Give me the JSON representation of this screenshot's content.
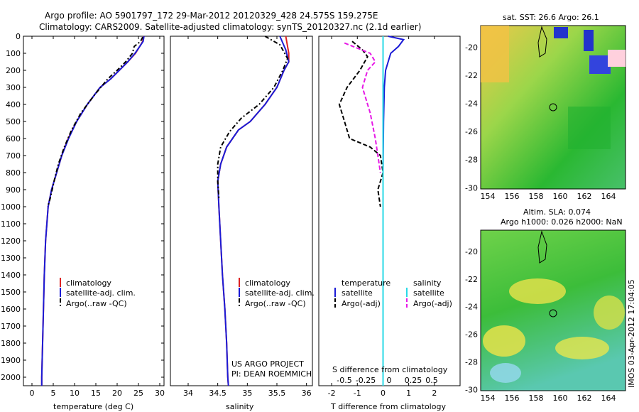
{
  "header": {
    "line1": "Argo profile: AO 5901797_172 29-Mar-2012 20120329_428 24.575S 159.275E",
    "line2": "Climatology: CARS2009. Satellite-adjusted climatology: synTS_20120327.nc (2.1d earlier)"
  },
  "colors": {
    "climatology": "#dd2222",
    "satellite": "#1b1bd6",
    "argo": "#000000",
    "salinity_sat": "#29d9e6",
    "argo_adj_sal": "#e619e6"
  },
  "chart_data": [
    {
      "type": "line",
      "xlabel": "temperature (deg C)",
      "xlim": [
        -2,
        31
      ],
      "ylim": [
        0,
        2050
      ],
      "y_inverted": true,
      "xticks": [
        0,
        5,
        10,
        15,
        20,
        25,
        30
      ],
      "yticks": [
        0,
        100,
        200,
        300,
        400,
        500,
        600,
        700,
        800,
        900,
        1000,
        1100,
        1200,
        1300,
        1400,
        1500,
        1600,
        1700,
        1800,
        1900,
        2000
      ],
      "legend": [
        "climatology",
        "satellite-adj. clim.",
        "Argo(..raw -QC)"
      ],
      "series": [
        {
          "name": "climatology",
          "x": [
            26.2,
            26.0,
            25.3,
            24.3,
            22.5,
            20.5,
            18.5,
            16.0,
            13.0,
            10.5,
            8.5,
            7.0,
            5.8,
            4.6,
            3.8,
            3.2,
            2.9,
            2.7,
            2.5,
            2.4,
            2.3,
            2.3
          ],
          "y": [
            0,
            30,
            60,
            100,
            150,
            200,
            250,
            300,
            400,
            500,
            600,
            700,
            800,
            900,
            1000,
            1200,
            1400,
            1600,
            1800,
            1900,
            2000,
            2050
          ]
        },
        {
          "name": "satellite-adj. clim.",
          "x": [
            26.3,
            26.1,
            25.3,
            24.2,
            22.5,
            20.5,
            18.5,
            16.0,
            13.0,
            10.5,
            8.6,
            7.0,
            5.8,
            4.6,
            3.8,
            3.2,
            2.9,
            2.7,
            2.5,
            2.4,
            2.3,
            2.3
          ],
          "y": [
            0,
            30,
            60,
            100,
            150,
            200,
            250,
            300,
            400,
            500,
            600,
            700,
            800,
            900,
            1000,
            1200,
            1400,
            1600,
            1800,
            1900,
            2000,
            2050
          ]
        },
        {
          "name": "Argo(..raw -QC)",
          "x": [
            26.0,
            25.5,
            24.0,
            23.6,
            22.0,
            20.0,
            17.8,
            14.5,
            11.5,
            9.3,
            7.6,
            6.2,
            5.2,
            4.3,
            3.7
          ],
          "y": [
            5,
            30,
            60,
            100,
            150,
            200,
            250,
            350,
            450,
            550,
            650,
            750,
            850,
            950,
            1000
          ]
        }
      ]
    },
    {
      "type": "line",
      "xlabel": "salinity",
      "xlim": [
        33.7,
        36.1
      ],
      "ylim": [
        0,
        2050
      ],
      "y_inverted": true,
      "xticks": [
        34,
        34.5,
        35,
        35.5,
        36
      ],
      "legend": [
        "climatology",
        "satellite-adj. clim.",
        "Argo(..raw -QC)"
      ],
      "annotation": [
        "US ARGO PROJECT",
        "PI: DEAN ROEMMICH"
      ],
      "series": [
        {
          "name": "climatology",
          "x": [
            35.65,
            35.7,
            35.7,
            35.62,
            35.5,
            35.3,
            35.05,
            34.85,
            34.65,
            34.55,
            34.5,
            34.52,
            34.55,
            34.58,
            34.62,
            34.65,
            34.67,
            34.68
          ],
          "y": [
            0,
            100,
            150,
            200,
            300,
            400,
            500,
            550,
            650,
            750,
            850,
            1000,
            1200,
            1400,
            1600,
            1800,
            2000,
            2050
          ]
        },
        {
          "name": "satellite-adj. clim.",
          "x": [
            35.55,
            35.65,
            35.7,
            35.62,
            35.5,
            35.3,
            35.05,
            34.85,
            34.65,
            34.55,
            34.5,
            34.52,
            34.55,
            34.58,
            34.62,
            34.65,
            34.67,
            34.68
          ],
          "y": [
            0,
            80,
            150,
            200,
            300,
            400,
            500,
            550,
            650,
            750,
            850,
            1000,
            1200,
            1400,
            1600,
            1800,
            2000,
            2050
          ]
        },
        {
          "name": "Argo(..raw -QC)",
          "x": [
            35.3,
            35.55,
            35.68,
            35.6,
            35.45,
            35.2,
            34.9,
            34.7,
            34.55,
            34.5,
            34.5,
            34.52
          ],
          "y": [
            0,
            50,
            130,
            200,
            300,
            400,
            480,
            560,
            650,
            750,
            850,
            950
          ]
        }
      ]
    },
    {
      "type": "line",
      "xlabel": "T difference from climatology",
      "xlabel2": "S difference from climatology",
      "xlim": [
        -2.5,
        3
      ],
      "ylim": [
        0,
        2050
      ],
      "y_inverted": true,
      "xticks": [
        -2,
        -1,
        0,
        1,
        2
      ],
      "xticks_s": [
        -0.5,
        -0.25,
        0,
        0.25,
        0.5
      ],
      "legend_headers": [
        "temperature",
        "salinity"
      ],
      "legend": [
        "satellite",
        "Argo(-adj)",
        "satellite",
        "Argo(-adj)"
      ],
      "series": [
        {
          "name": "satellite",
          "x": [
            0.2,
            0.8,
            0.6,
            0.3,
            0.1,
            0.05,
            0.02,
            0.0,
            0.0,
            0.0
          ],
          "y": [
            0,
            20,
            60,
            100,
            200,
            300,
            500,
            800,
            1200,
            2050
          ]
        },
        {
          "name": "Argo(-adj)",
          "x": [
            -1.2,
            -0.8,
            -0.6,
            -0.9,
            -1.4,
            -1.7,
            -1.5,
            -1.3,
            -0.5,
            -0.1,
            0.0,
            -0.2,
            -0.1
          ],
          "y": [
            30,
            80,
            120,
            200,
            300,
            400,
            500,
            600,
            650,
            700,
            800,
            900,
            1000
          ]
        },
        {
          "name": "satellite",
          "x": [
            0.0,
            0.0,
            0.0,
            0.0
          ],
          "y": [
            0,
            600,
            1200,
            2050
          ]
        },
        {
          "name": "Argo(-adj)",
          "x": [
            -1.5,
            -0.5,
            -0.3,
            -0.6,
            -0.8,
            -0.5,
            -0.3,
            -0.1
          ],
          "y": [
            40,
            100,
            150,
            200,
            300,
            450,
            600,
            800
          ]
        }
      ]
    },
    {
      "type": "heatmap",
      "title": "sat. SST: 26.6 Argo: 26.1",
      "xticks": [
        "154",
        "156",
        "158",
        "160",
        "162",
        "164"
      ],
      "yticks": [
        "-20",
        "-22",
        "-24",
        "-26",
        "-28",
        "-30"
      ]
    },
    {
      "type": "heatmap",
      "title_line1": "Altim. SLA: 0.074",
      "title_line2": "Argo h1000: 0.026 h2000: NaN",
      "xticks": [
        "154",
        "156",
        "158",
        "160",
        "162",
        "164"
      ],
      "yticks": [
        "-20",
        "-22",
        "-24",
        "-26",
        "-28",
        "-30"
      ]
    }
  ],
  "footer_vertical": "IMOS 03-Apr-2012 17:04:05"
}
